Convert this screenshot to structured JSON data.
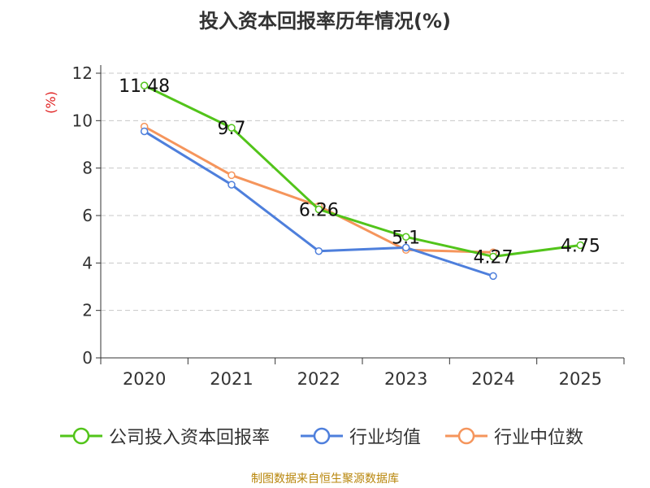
{
  "title": "投入资本回报率历年情况(%)",
  "source": "制图数据来自恒生聚源数据库",
  "chart_data": {
    "type": "line",
    "title": "投入资本回报率历年情况(%)",
    "xlabel": "",
    "ylabel": "(%)",
    "categories": [
      "2020",
      "2021",
      "2022",
      "2023",
      "2024",
      "2025"
    ],
    "ylim": [
      0,
      12
    ],
    "yticks": [
      0,
      2,
      4,
      6,
      8,
      10,
      12
    ],
    "grid": true,
    "legend_position": "bottom",
    "series": [
      {
        "name": "公司投入资本回报率",
        "color": "#52c41a",
        "values": [
          11.48,
          9.7,
          6.26,
          5.1,
          4.27,
          4.75
        ],
        "labels": [
          "11.48",
          "9.7",
          "6.26",
          "5.1",
          "4.27",
          "4.75"
        ]
      },
      {
        "name": "行业均值",
        "color": "#4e7fdc",
        "values": [
          9.55,
          7.3,
          4.5,
          4.65,
          3.45,
          null
        ]
      },
      {
        "name": "行业中位数",
        "color": "#f5955c",
        "values": [
          9.75,
          7.7,
          6.4,
          4.55,
          4.45,
          null
        ]
      }
    ]
  }
}
